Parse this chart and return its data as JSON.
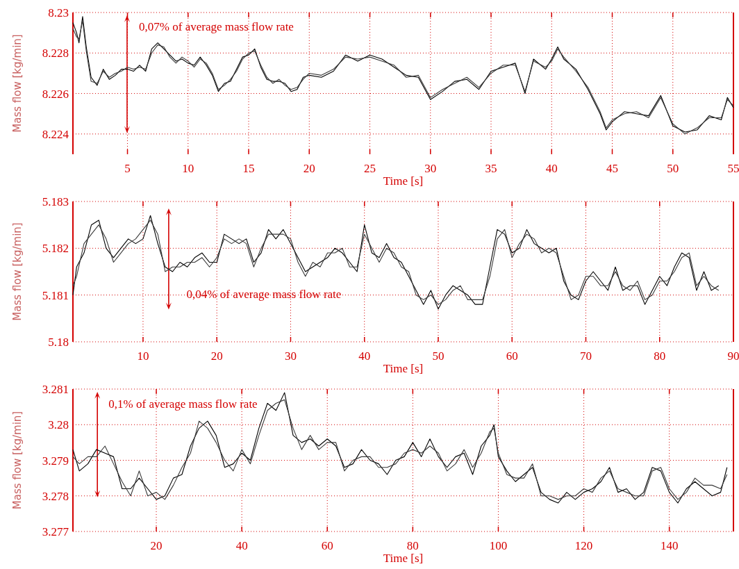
{
  "chart_data": [
    {
      "type": "line",
      "xlabel": "Time [s]",
      "ylabel": "Mass flow [kg/min]",
      "xlim": [
        0.5,
        55
      ],
      "ylim": [
        8.223,
        8.23
      ],
      "xticks": [
        5,
        10,
        15,
        20,
        25,
        30,
        35,
        40,
        45,
        50,
        55
      ],
      "yticks": [
        8.224,
        8.226,
        8.228,
        8.23
      ],
      "grid": true,
      "line_style": "solid",
      "annotations": [
        "0,07% of average mass flow rate"
      ],
      "x": [
        0.5,
        0.8,
        1,
        1.3,
        1.6,
        2,
        2.5,
        3,
        3.5,
        4,
        4.5,
        5,
        5.5,
        6,
        6.5,
        7,
        7.5,
        8,
        8.5,
        9,
        9.5,
        10,
        10.5,
        11,
        11.5,
        12,
        12.5,
        13,
        13.5,
        14,
        14.5,
        15,
        15.5,
        16,
        16.5,
        17,
        17.5,
        18,
        18.5,
        19,
        19.5,
        20,
        21,
        22,
        23,
        24,
        25,
        26,
        27,
        28,
        29,
        30,
        31,
        32,
        33,
        34,
        35,
        36,
        37,
        37.8,
        38.5,
        39.5,
        40,
        40.5,
        41,
        42,
        43,
        44,
        44.5,
        45,
        46,
        47,
        48,
        49,
        50,
        51,
        52,
        53,
        54,
        54.5,
        55
      ],
      "series": [
        {
          "color": "#000000",
          "values": [
            8.2295,
            8.229,
            8.2285,
            8.2298,
            8.2283,
            8.2268,
            8.2264,
            8.2272,
            8.2267,
            8.2269,
            8.2272,
            8.2272,
            8.2271,
            8.2274,
            8.2271,
            8.2282,
            8.2285,
            8.2282,
            8.2279,
            8.2276,
            8.2277,
            8.2275,
            8.2274,
            8.2278,
            8.2274,
            8.2269,
            8.2261,
            8.2265,
            8.2266,
            8.2272,
            8.2278,
            8.2279,
            8.2282,
            8.2273,
            8.2267,
            8.2266,
            8.2266,
            8.2265,
            8.2261,
            8.2262,
            8.2268,
            8.2269,
            8.2268,
            8.2271,
            8.2279,
            8.2276,
            8.2279,
            8.2277,
            8.2273,
            8.2269,
            8.2268,
            8.2257,
            8.2261,
            8.2266,
            8.2267,
            8.2262,
            8.2271,
            8.2273,
            8.2275,
            8.226,
            8.2277,
            8.2272,
            8.2277,
            8.2283,
            8.2277,
            8.2272,
            8.2262,
            8.225,
            8.2242,
            8.2246,
            8.2251,
            8.225,
            8.2249,
            8.2259,
            8.2244,
            8.2241,
            8.2242,
            8.2249,
            8.2247,
            8.2258,
            8.2253
          ]
        },
        {
          "color": "#3a3a3a",
          "values": [
            8.2292,
            8.2288,
            8.2287,
            8.2296,
            8.2281,
            8.2266,
            8.2265,
            8.2271,
            8.2268,
            8.227,
            8.2271,
            8.2273,
            8.2272,
            8.2273,
            8.2272,
            8.228,
            8.2284,
            8.2283,
            8.2278,
            8.2275,
            8.2278,
            8.2276,
            8.2273,
            8.2277,
            8.2275,
            8.227,
            8.2262,
            8.2264,
            8.2267,
            8.2271,
            8.2277,
            8.228,
            8.2281,
            8.2274,
            8.2268,
            8.2265,
            8.2267,
            8.2264,
            8.2262,
            8.2263,
            8.2267,
            8.227,
            8.2269,
            8.2272,
            8.2278,
            8.2277,
            8.2278,
            8.2276,
            8.2274,
            8.2268,
            8.2269,
            8.2258,
            8.2262,
            8.2265,
            8.2268,
            8.2263,
            8.227,
            8.2274,
            8.2274,
            8.2261,
            8.2276,
            8.2273,
            8.2276,
            8.2282,
            8.2278,
            8.2271,
            8.2263,
            8.2251,
            8.2243,
            8.2247,
            8.225,
            8.2251,
            8.2248,
            8.2258,
            8.2245,
            8.224,
            8.2243,
            8.2248,
            8.2248,
            8.2257,
            8.2254
          ]
        }
      ]
    },
    {
      "type": "line",
      "xlabel": "Time [s]",
      "ylabel": "Mass flow [kg/min]",
      "xlim": [
        0.5,
        90
      ],
      "ylim": [
        5.18,
        5.183
      ],
      "xticks": [
        10,
        20,
        30,
        40,
        50,
        60,
        70,
        80,
        90
      ],
      "yticks": [
        5.18,
        5.181,
        5.182,
        5.183
      ],
      "grid": true,
      "line_style": "solid",
      "annotations": [
        "0,04% of average mass flow rate"
      ],
      "x": [
        0.5,
        1,
        2,
        3,
        4,
        5,
        6,
        7,
        8,
        9,
        10,
        11,
        12,
        13,
        14,
        15,
        16,
        17,
        18,
        19,
        20,
        21,
        22,
        23,
        24,
        25,
        26,
        27,
        28,
        29,
        30,
        31,
        32,
        33,
        34,
        35,
        36,
        37,
        38,
        39,
        40,
        41,
        42,
        43,
        44,
        45,
        46,
        47,
        48,
        49,
        50,
        51,
        52,
        53,
        54,
        55,
        56,
        57,
        58,
        59,
        60,
        61,
        62,
        63,
        64,
        65,
        66,
        67,
        68,
        69,
        70,
        71,
        72,
        73,
        74,
        75,
        76,
        77,
        78,
        79,
        80,
        81,
        82,
        83,
        84,
        85,
        86,
        87,
        88
      ],
      "series": [
        {
          "color": "#000000",
          "values": [
            5.181,
            5.1816,
            5.1819,
            5.1825,
            5.1826,
            5.182,
            5.1818,
            5.182,
            5.1822,
            5.1821,
            5.1822,
            5.1827,
            5.1821,
            5.1816,
            5.1815,
            5.1817,
            5.1816,
            5.1818,
            5.1819,
            5.1817,
            5.1817,
            5.1823,
            5.1822,
            5.1821,
            5.1822,
            5.1817,
            5.1819,
            5.1824,
            5.1822,
            5.1824,
            5.1821,
            5.1818,
            5.1815,
            5.1816,
            5.1817,
            5.1818,
            5.182,
            5.1819,
            5.1817,
            5.1815,
            5.1825,
            5.1819,
            5.1818,
            5.1821,
            5.1818,
            5.1817,
            5.1814,
            5.1811,
            5.1808,
            5.1811,
            5.1807,
            5.181,
            5.1812,
            5.1811,
            5.181,
            5.1808,
            5.1808,
            5.1816,
            5.1824,
            5.1823,
            5.1819,
            5.182,
            5.1824,
            5.1821,
            5.182,
            5.1819,
            5.182,
            5.1813,
            5.181,
            5.1809,
            5.1813,
            5.1815,
            5.1813,
            5.1811,
            5.1816,
            5.1811,
            5.1812,
            5.1812,
            5.1808,
            5.1811,
            5.1814,
            5.1812,
            5.1816,
            5.1819,
            5.1818,
            5.1811,
            5.1815,
            5.1811,
            5.1812
          ]
        },
        {
          "color": "#3a3a3a",
          "values": [
            5.1812,
            5.1814,
            5.1821,
            5.1823,
            5.1825,
            5.1822,
            5.1817,
            5.1819,
            5.1821,
            5.1822,
            5.1824,
            5.1826,
            5.1823,
            5.1815,
            5.1816,
            5.1816,
            5.1817,
            5.1817,
            5.1818,
            5.1816,
            5.1818,
            5.1822,
            5.1821,
            5.1822,
            5.1821,
            5.1816,
            5.182,
            5.1823,
            5.1823,
            5.1823,
            5.1822,
            5.1817,
            5.1814,
            5.1817,
            5.1816,
            5.1819,
            5.1819,
            5.182,
            5.1816,
            5.1816,
            5.1823,
            5.182,
            5.1817,
            5.182,
            5.1819,
            5.1816,
            5.1815,
            5.181,
            5.1809,
            5.181,
            5.1808,
            5.1809,
            5.1811,
            5.1812,
            5.1809,
            5.1809,
            5.1809,
            5.1814,
            5.1822,
            5.1824,
            5.1818,
            5.1821,
            5.1823,
            5.1822,
            5.1819,
            5.182,
            5.1819,
            5.1814,
            5.1809,
            5.181,
            5.1814,
            5.1814,
            5.1812,
            5.1812,
            5.1815,
            5.1812,
            5.1811,
            5.1813,
            5.1809,
            5.181,
            5.1813,
            5.1813,
            5.1815,
            5.1818,
            5.1819,
            5.1812,
            5.1814,
            5.1812,
            5.1811
          ]
        }
      ]
    },
    {
      "type": "line",
      "xlabel": "Time [s]",
      "ylabel": "Mass flow [kg/min]",
      "xlim": [
        0.5,
        155
      ],
      "ylim": [
        3.277,
        3.281
      ],
      "xticks": [
        20,
        40,
        60,
        80,
        100,
        120,
        140
      ],
      "yticks": [
        3.277,
        3.278,
        3.279,
        3.28,
        3.281
      ],
      "grid": true,
      "line_style": "solid",
      "annotations": [
        "0,1% of average mass flow rate"
      ],
      "x": [
        0.5,
        2,
        4,
        6,
        8,
        10,
        12,
        14,
        16,
        18,
        20,
        22,
        24,
        26,
        28,
        30,
        32,
        34,
        36,
        38,
        40,
        42,
        44,
        46,
        48,
        50,
        52,
        54,
        56,
        58,
        60,
        62,
        64,
        66,
        68,
        70,
        72,
        74,
        76,
        78,
        80,
        82,
        84,
        86,
        88,
        90,
        92,
        94,
        96,
        98,
        99,
        100,
        102,
        104,
        106,
        108,
        110,
        112,
        114,
        116,
        118,
        120,
        122,
        124,
        126,
        128,
        130,
        132,
        134,
        136,
        138,
        140,
        142,
        144,
        146,
        148,
        150,
        152,
        153.5
      ],
      "series": [
        {
          "color": "#000000",
          "values": [
            3.2793,
            3.2787,
            3.2789,
            3.2793,
            3.2792,
            3.2791,
            3.2782,
            3.2782,
            3.2785,
            3.2782,
            3.2779,
            3.278,
            3.2785,
            3.2786,
            3.2794,
            3.2799,
            3.2801,
            3.2797,
            3.2788,
            3.2789,
            3.2792,
            3.279,
            3.2799,
            3.2806,
            3.2804,
            3.2809,
            3.2797,
            3.2795,
            3.2796,
            3.2794,
            3.2796,
            3.2794,
            3.2788,
            3.2789,
            3.2793,
            3.279,
            3.2789,
            3.2786,
            3.279,
            3.2791,
            3.2795,
            3.2791,
            3.2796,
            3.2791,
            3.2788,
            3.2791,
            3.2792,
            3.2786,
            3.2794,
            3.2797,
            3.28,
            3.2791,
            3.2787,
            3.2784,
            3.2786,
            3.2788,
            3.2781,
            3.2779,
            3.2778,
            3.2781,
            3.2779,
            3.2781,
            3.2782,
            3.2784,
            3.2788,
            3.2781,
            3.2782,
            3.2779,
            3.2781,
            3.2788,
            3.2787,
            3.2781,
            3.2778,
            3.2782,
            3.2784,
            3.2782,
            3.278,
            3.2781,
            3.2788
          ]
        },
        {
          "color": "#3a3a3a",
          "values": [
            3.2791,
            3.2789,
            3.2791,
            3.2791,
            3.2794,
            3.2789,
            3.2784,
            3.278,
            3.2787,
            3.278,
            3.2781,
            3.2779,
            3.2783,
            3.2788,
            3.2792,
            3.2801,
            3.2799,
            3.2795,
            3.279,
            3.2787,
            3.2793,
            3.2789,
            3.2797,
            3.2804,
            3.2806,
            3.2807,
            3.2799,
            3.2793,
            3.2797,
            3.2793,
            3.2795,
            3.2795,
            3.2787,
            3.279,
            3.2791,
            3.2791,
            3.2788,
            3.2788,
            3.2789,
            3.2792,
            3.2793,
            3.2792,
            3.2794,
            3.2792,
            3.2787,
            3.2789,
            3.2793,
            3.2788,
            3.2792,
            3.2798,
            3.2799,
            3.2792,
            3.2786,
            3.2785,
            3.2785,
            3.2789,
            3.278,
            3.278,
            3.2779,
            3.278,
            3.278,
            3.2782,
            3.2781,
            3.2785,
            3.2787,
            3.2782,
            3.2781,
            3.278,
            3.278,
            3.2787,
            3.2788,
            3.2782,
            3.2779,
            3.2781,
            3.2785,
            3.2783,
            3.2783,
            3.2782,
            3.2786
          ]
        }
      ]
    }
  ]
}
